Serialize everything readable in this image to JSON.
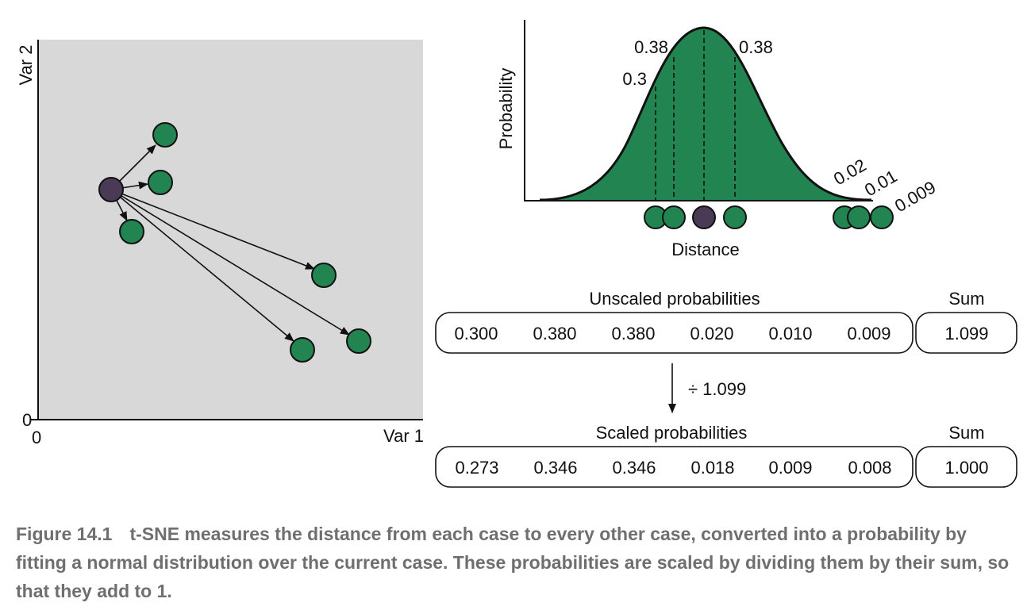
{
  "scatter": {
    "x_label": "Var 1",
    "y_label": "Var 2",
    "x_zero": "0",
    "y_zero": "0"
  },
  "curve": {
    "y_label": "Probability",
    "x_label": "Distance",
    "labels": [
      "0.38",
      "0.38",
      "0.3",
      "0.02",
      "0.01",
      "0.009"
    ]
  },
  "unscaled": {
    "title": "Unscaled probabilities",
    "values": [
      "0.300",
      "0.380",
      "0.380",
      "0.020",
      "0.010",
      "0.009"
    ],
    "sum_label": "Sum",
    "sum": "1.099"
  },
  "divide_label": "÷ 1.099",
  "scaled": {
    "title": "Scaled probabilities",
    "values": [
      "0.273",
      "0.346",
      "0.346",
      "0.018",
      "0.009",
      "0.008"
    ],
    "sum_label": "Sum",
    "sum": "1.000"
  },
  "caption": {
    "number": "Figure 14.1",
    "text": "t-SNE measures the distance from each case to every other case, converted into a probability by fitting a normal distribution over the current case. These probabilities are scaled by dividing them by their sum, so that they add to 1."
  },
  "colors": {
    "green": "#218451",
    "purple": "#4a3a55",
    "panel": "#d8d8d8"
  }
}
